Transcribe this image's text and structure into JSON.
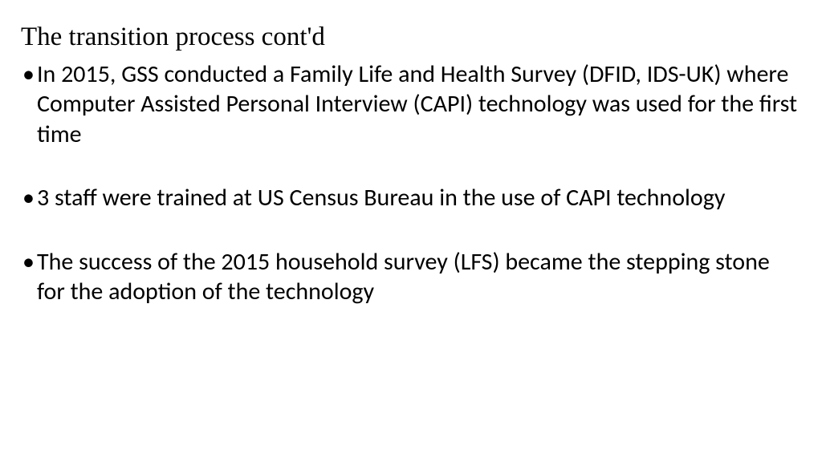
{
  "slide": {
    "title": "The transition process cont'd",
    "bullets": [
      "In 2015, GSS conducted a Family Life and Health Survey (DFID, IDS-UK) where Computer Assisted Personal Interview (CAPI) technology was used for the first time",
      "3 staff were trained at US Census Bureau in the use of CAPI technology",
      "The success of the 2015 household survey (LFS) became the stepping stone for the adoption of the technology"
    ],
    "colors": {
      "background": "#ffffff",
      "text": "#000000"
    },
    "typography": {
      "title_font": "Comic Sans MS",
      "title_fontsize_pt": 25,
      "body_font": "Calibri",
      "body_fontsize_pt": 22
    }
  }
}
